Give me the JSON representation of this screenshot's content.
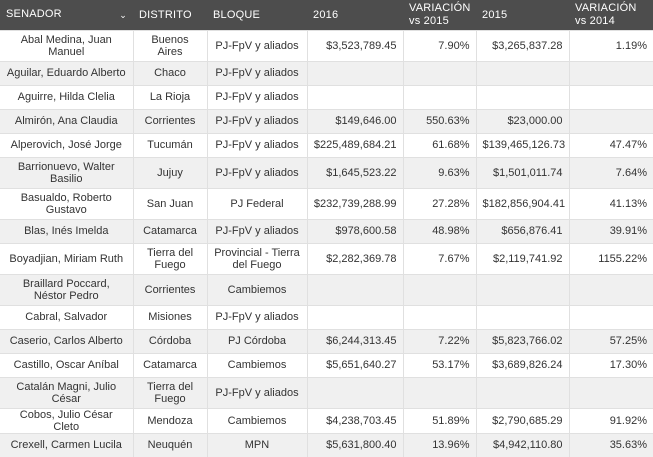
{
  "headers": {
    "senador": "SENADOR",
    "distrito": "DISTRITO",
    "bloque": "BLOQUE",
    "y2016": "2016",
    "var2015": "VARIACIÓN vs 2015",
    "y2015": "2015",
    "var2014": "VARIACIÓN vs 2014"
  },
  "rows": [
    {
      "name": "Abal Medina, Juan Manuel",
      "distrito": "Buenos Aires",
      "bloque": "PJ-FpV y aliados",
      "v2016": "$3,523,789.45",
      "var2015": "7.90%",
      "v2015": "$3,265,837.28",
      "var2014": "1.19%"
    },
    {
      "name": "Aguilar, Eduardo Alberto",
      "distrito": "Chaco",
      "bloque": "PJ-FpV y aliados",
      "v2016": "",
      "var2015": "",
      "v2015": "",
      "var2014": ""
    },
    {
      "name": "Aguirre, Hilda Clelia",
      "distrito": "La Rioja",
      "bloque": "PJ-FpV y aliados",
      "v2016": "",
      "var2015": "",
      "v2015": "",
      "var2014": ""
    },
    {
      "name": "Almirón, Ana Claudia",
      "distrito": "Corrientes",
      "bloque": "PJ-FpV y aliados",
      "v2016": "$149,646.00",
      "var2015": "550.63%",
      "v2015": "$23,000.00",
      "var2014": ""
    },
    {
      "name": "Alperovich, José Jorge",
      "distrito": "Tucumán",
      "bloque": "PJ-FpV y aliados",
      "v2016": "$225,489,684.21",
      "var2015": "61.68%",
      "v2015": "$139,465,126.73",
      "var2014": "47.47%"
    },
    {
      "name": "Barrionuevo, Walter Basilio",
      "distrito": "Jujuy",
      "bloque": "PJ-FpV y aliados",
      "v2016": "$1,645,523.22",
      "var2015": "9.63%",
      "v2015": "$1,501,011.74",
      "var2014": "7.64%"
    },
    {
      "name": "Basualdo, Roberto Gustavo",
      "distrito": "San Juan",
      "bloque": "PJ Federal",
      "v2016": "$232,739,288.99",
      "var2015": "27.28%",
      "v2015": "$182,856,904.41",
      "var2014": "41.13%"
    },
    {
      "name": "Blas, Inés Imelda",
      "distrito": "Catamarca",
      "bloque": "PJ-FpV y aliados",
      "v2016": "$978,600.58",
      "var2015": "48.98%",
      "v2015": "$656,876.41",
      "var2014": "39.91%"
    },
    {
      "name": "Boyadjian, Miriam Ruth",
      "distrito": "Tierra del Fuego",
      "bloque": "Provincial - Tierra del Fuego",
      "v2016": "$2,282,369.78",
      "var2015": "7.67%",
      "v2015": "$2,119,741.92",
      "var2014": "1155.22%"
    },
    {
      "name": "Braillard Poccard, Néstor Pedro",
      "distrito": "Corrientes",
      "bloque": "Cambiemos",
      "v2016": "",
      "var2015": "",
      "v2015": "",
      "var2014": ""
    },
    {
      "name": "Cabral, Salvador",
      "distrito": "Misiones",
      "bloque": "PJ-FpV y aliados",
      "v2016": "",
      "var2015": "",
      "v2015": "",
      "var2014": ""
    },
    {
      "name": "Caserio, Carlos Alberto",
      "distrito": "Córdoba",
      "bloque": "PJ Córdoba",
      "v2016": "$6,244,313.45",
      "var2015": "7.22%",
      "v2015": "$5,823,766.02",
      "var2014": "57.25%"
    },
    {
      "name": "Castillo, Oscar Aníbal",
      "distrito": "Catamarca",
      "bloque": "Cambiemos",
      "v2016": "$5,651,640.27",
      "var2015": "53.17%",
      "v2015": "$3,689,826.24",
      "var2014": "17.30%"
    },
    {
      "name": "Catalán Magni, Julio César",
      "distrito": "Tierra del Fuego",
      "bloque": "PJ-FpV y aliados",
      "v2016": "",
      "var2015": "",
      "v2015": "",
      "var2014": ""
    },
    {
      "name": "Cobos, Julio César Cleto",
      "distrito": "Mendoza",
      "bloque": "Cambiemos",
      "v2016": "$4,238,703.45",
      "var2015": "51.89%",
      "v2015": "$2,790,685.29",
      "var2014": "91.92%"
    },
    {
      "name": "Crexell, Carmen Lucila",
      "distrito": "Neuquén",
      "bloque": "MPN",
      "v2016": "$5,631,800.40",
      "var2015": "13.96%",
      "v2015": "$4,942,110.80",
      "var2014": "35.63%"
    }
  ]
}
